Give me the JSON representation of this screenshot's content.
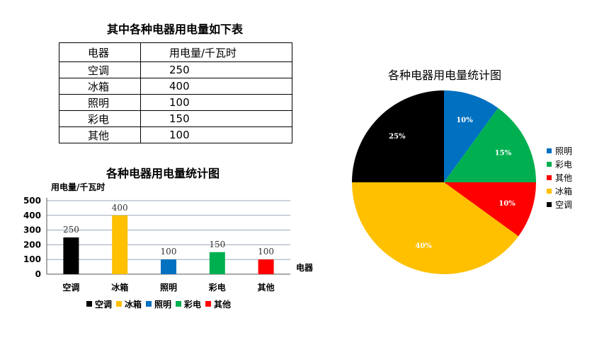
{
  "table": {
    "title": "其中各种电器用电量如下表",
    "headers": [
      "电器",
      "用电量/千瓦时"
    ],
    "rows": [
      [
        "空调",
        "250"
      ],
      [
        "冰箱",
        "400"
      ],
      [
        "照明",
        "100"
      ],
      [
        "彩电",
        "150"
      ],
      [
        "其他",
        "100"
      ]
    ]
  },
  "chart_data": [
    {
      "type": "bar",
      "title": "各种电器用电量统计图",
      "ylabel": "用电量/千瓦时",
      "xlabel": "电器",
      "categories": [
        "空调",
        "冰箱",
        "照明",
        "彩电",
        "其他"
      ],
      "values": [
        250,
        400,
        100,
        150,
        100
      ],
      "colors": [
        "#000000",
        "#FFC000",
        "#0070C0",
        "#00B050",
        "#FF0000"
      ],
      "ylim": [
        0,
        500
      ],
      "yticks": [
        0,
        100,
        200,
        300,
        400,
        500
      ],
      "legend": [
        "空调",
        "冰箱",
        "照明",
        "彩电",
        "其他"
      ],
      "legend_position": "bottom"
    },
    {
      "type": "pie",
      "title": "各种电器用电量统计图",
      "categories": [
        "照明",
        "彩电",
        "其他",
        "冰箱",
        "空调"
      ],
      "values": [
        10,
        15,
        10,
        40,
        25
      ],
      "labels": [
        "10%",
        "15%",
        "10%",
        "40%",
        "25%"
      ],
      "colors": [
        "#0070C0",
        "#00B050",
        "#FF0000",
        "#FFC000",
        "#000000"
      ],
      "legend": [
        "照明",
        "彩电",
        "其他",
        "冰箱",
        "空调"
      ],
      "legend_position": "right"
    }
  ]
}
